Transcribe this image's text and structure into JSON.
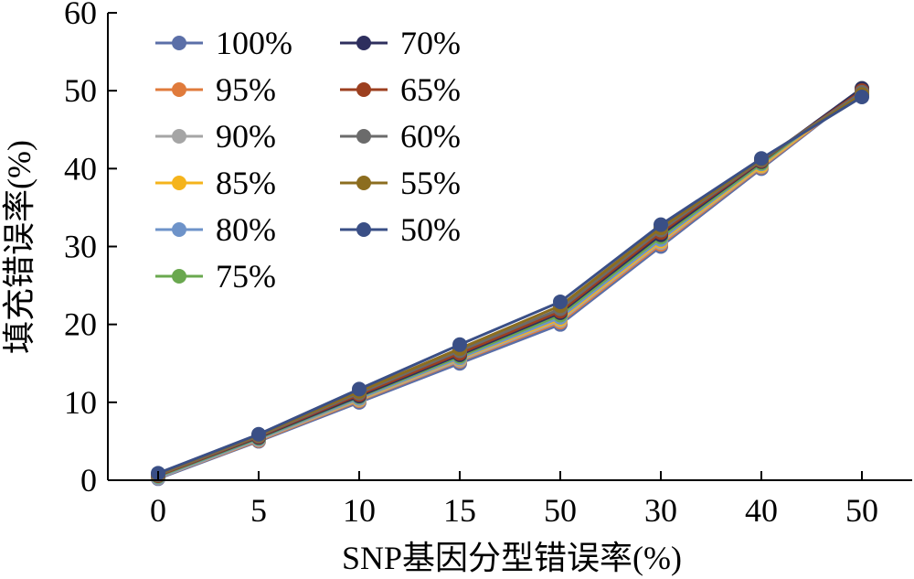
{
  "chart_data": {
    "type": "line",
    "xlabel": "SNP基因分型错误率(%)",
    "ylabel": "填充错误率(%)",
    "categories": [
      "0",
      "5",
      "10",
      "15",
      "50",
      "30",
      "40",
      "50"
    ],
    "yticks": [
      "0",
      "10",
      "20",
      "30",
      "40",
      "50",
      "60"
    ],
    "ylim": [
      0,
      60
    ],
    "grid": false,
    "legend_position": "top-left",
    "series": [
      {
        "name": "100%",
        "color": "#5b6fa8",
        "values": [
          0.2,
          5.0,
          10.0,
          15.0,
          20.0,
          30.0,
          40.0,
          50.0
        ]
      },
      {
        "name": "95%",
        "color": "#e07b3c",
        "values": [
          0.3,
          5.1,
          10.2,
          15.3,
          20.3,
          30.3,
          40.2,
          50.0
        ]
      },
      {
        "name": "90%",
        "color": "#a5a5a5",
        "values": [
          0.3,
          5.2,
          10.3,
          15.4,
          20.5,
          30.5,
          40.3,
          50.1
        ]
      },
      {
        "name": "85%",
        "color": "#f5b41c",
        "values": [
          0.4,
          5.3,
          10.4,
          15.6,
          20.7,
          30.7,
          40.4,
          50.1
        ]
      },
      {
        "name": "80%",
        "color": "#6e93c9",
        "values": [
          0.4,
          5.3,
          10.5,
          15.7,
          20.9,
          30.9,
          40.6,
          50.2
        ]
      },
      {
        "name": "75%",
        "color": "#6aa84f",
        "values": [
          0.5,
          5.4,
          10.7,
          15.9,
          21.2,
          31.2,
          40.7,
          50.3
        ]
      },
      {
        "name": "70%",
        "color": "#2e2f5e",
        "values": [
          0.6,
          5.5,
          10.8,
          16.1,
          21.5,
          31.5,
          40.9,
          50.3
        ]
      },
      {
        "name": "65%",
        "color": "#9c3f1f",
        "values": [
          0.6,
          5.6,
          11.0,
          16.3,
          21.7,
          31.8,
          41.0,
          50.0
        ]
      },
      {
        "name": "60%",
        "color": "#6b6b6b",
        "values": [
          0.7,
          5.7,
          11.2,
          16.6,
          22.0,
          32.1,
          41.1,
          49.8
        ]
      },
      {
        "name": "55%",
        "color": "#8c6d1f",
        "values": [
          0.8,
          5.8,
          11.4,
          16.9,
          22.4,
          32.4,
          41.2,
          49.5
        ]
      },
      {
        "name": "50%",
        "color": "#3a4f86",
        "values": [
          0.9,
          5.9,
          11.7,
          17.4,
          22.9,
          32.8,
          41.3,
          49.2
        ]
      }
    ]
  }
}
